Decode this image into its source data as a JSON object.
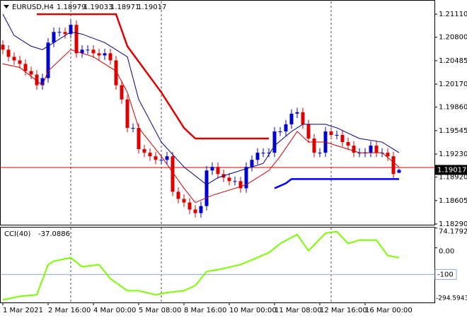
{
  "chart_data": [
    {
      "type": "candlestick",
      "title": "EURUSD,H4",
      "bull_color": "#0000cd",
      "bear_color": "#dd0000",
      "ylim": [
        1.1828,
        1.21282
      ],
      "yticks": [
        {
          "value": 1.2111,
          "label": "1.21110"
        },
        {
          "value": 1.208,
          "label": "1.20800"
        },
        {
          "value": 1.20485,
          "label": "1.20485"
        },
        {
          "value": 1.2017,
          "label": "1.20170"
        },
        {
          "value": 1.1986,
          "label": "1.19860"
        },
        {
          "value": 1.19545,
          "label": "1.19545"
        },
        {
          "value": 1.1923,
          "label": "1.19230"
        },
        {
          "value": 1.1892,
          "label": "1.18920"
        },
        {
          "value": 1.18605,
          "label": "1.18605"
        },
        {
          "value": 1.1829,
          "label": "1.18290"
        }
      ],
      "xticks": [
        {
          "value": 0,
          "label": "1 Mar 2021"
        },
        {
          "value": 8,
          "label": "2 Mar 16:00"
        },
        {
          "value": 16,
          "label": "4 Mar 00:00"
        },
        {
          "value": 24,
          "label": "5 Mar 08:00"
        },
        {
          "value": 32,
          "label": "8 Mar 16:00"
        },
        {
          "value": 40,
          "label": "10 Mar 00:00"
        },
        {
          "value": 48,
          "label": "11 Mar 08:00"
        },
        {
          "value": 56,
          "label": "12 Mar 16:00"
        },
        {
          "value": 64,
          "label": "16 Mar 00:00"
        }
      ],
      "day_separators": [
        12,
        28,
        58
      ],
      "red_line": 1.1905,
      "red_line_color": "#dd0000",
      "candles": [
        [
          1.207,
          1.2076,
          1.20573,
          1.20633
        ],
        [
          1.20633,
          1.20693,
          1.20477,
          1.20537
        ],
        [
          1.20537,
          1.20597,
          1.20429,
          1.20489
        ],
        [
          1.20489,
          1.20549,
          1.20382,
          1.20442
        ],
        [
          1.20442,
          1.20502,
          1.20286,
          1.20346
        ],
        [
          1.20346,
          1.20406,
          1.20238,
          1.20298
        ],
        [
          1.20298,
          1.20358,
          1.20095,
          1.20155
        ],
        [
          1.20155,
          1.20311,
          1.20095,
          1.20251
        ],
        [
          1.20251,
          1.20788,
          1.20191,
          1.20728
        ],
        [
          1.20728,
          1.20931,
          1.20668,
          1.20871
        ],
        [
          1.20871,
          1.20931,
          1.20811,
          1.20871
        ],
        [
          1.20871,
          1.20931,
          1.20783,
          1.20843
        ],
        [
          1.20843,
          1.21027,
          1.20783,
          1.20967
        ],
        [
          1.20967,
          1.21027,
          1.20525,
          1.20585
        ],
        [
          1.20585,
          1.20693,
          1.20525,
          1.20633
        ],
        [
          1.20633,
          1.20693,
          1.20573,
          1.20633
        ],
        [
          1.20633,
          1.20693,
          1.20525,
          1.20585
        ],
        [
          1.20585,
          1.20645,
          1.20496,
          1.20556
        ],
        [
          1.20556,
          1.20645,
          1.20496,
          1.20585
        ],
        [
          1.20585,
          1.20645,
          1.20429,
          1.20489
        ],
        [
          1.20489,
          1.20549,
          1.20095,
          1.20155
        ],
        [
          1.20155,
          1.20215,
          1.19904,
          1.19964
        ],
        [
          1.19964,
          1.20024,
          1.19522,
          1.19582
        ],
        [
          1.19582,
          1.19642,
          1.19522,
          1.19582
        ],
        [
          1.19582,
          1.19642,
          1.19236,
          1.19296
        ],
        [
          1.19296,
          1.19356,
          1.19188,
          1.19248
        ],
        [
          1.19248,
          1.19308,
          1.1914,
          1.192
        ],
        [
          1.192,
          1.1926,
          1.19092,
          1.19152
        ],
        [
          1.19152,
          1.19212,
          1.19092,
          1.19152
        ],
        [
          1.19152,
          1.1926,
          1.19092,
          1.192
        ],
        [
          1.192,
          1.1926,
          1.18663,
          1.18723
        ],
        [
          1.18723,
          1.18783,
          1.18567,
          1.18627
        ],
        [
          1.18627,
          1.18687,
          1.18519,
          1.18579
        ],
        [
          1.18579,
          1.18639,
          1.18424,
          1.18484
        ],
        [
          1.18484,
          1.18544,
          1.18376,
          1.18436
        ],
        [
          1.18436,
          1.18591,
          1.18376,
          1.18531
        ],
        [
          1.18531,
          1.19069,
          1.18471,
          1.19009
        ],
        [
          1.19009,
          1.19117,
          1.18949,
          1.19057
        ],
        [
          1.19057,
          1.19117,
          1.18901,
          1.18961
        ],
        [
          1.18961,
          1.19021,
          1.18853,
          1.18913
        ],
        [
          1.18913,
          1.18973,
          1.18806,
          1.18866
        ],
        [
          1.18866,
          1.18926,
          1.18806,
          1.18866
        ],
        [
          1.18866,
          1.18926,
          1.1871,
          1.1877
        ],
        [
          1.1877,
          1.19117,
          1.1871,
          1.19057
        ],
        [
          1.19057,
          1.19212,
          1.18997,
          1.19152
        ],
        [
          1.19152,
          1.19308,
          1.19092,
          1.19248
        ],
        [
          1.19248,
          1.19308,
          1.19188,
          1.19248
        ],
        [
          1.19248,
          1.19308,
          1.19188,
          1.19248
        ],
        [
          1.19248,
          1.19594,
          1.19188,
          1.19534
        ],
        [
          1.19534,
          1.19594,
          1.19474,
          1.19534
        ],
        [
          1.19534,
          1.1969,
          1.19474,
          1.1963
        ],
        [
          1.1963,
          1.19833,
          1.1957,
          1.19773
        ],
        [
          1.19773,
          1.19852,
          1.19713,
          1.19792
        ],
        [
          1.19792,
          1.19852,
          1.1957,
          1.1963
        ],
        [
          1.1963,
          1.1969,
          1.19379,
          1.19439
        ],
        [
          1.19439,
          1.19499,
          1.19188,
          1.19248
        ],
        [
          1.19248,
          1.19308,
          1.19188,
          1.19248
        ],
        [
          1.19248,
          1.19594,
          1.19188,
          1.19534
        ],
        [
          1.19534,
          1.19594,
          1.19427,
          1.19487
        ],
        [
          1.19487,
          1.19547,
          1.19427,
          1.19487
        ],
        [
          1.19487,
          1.19547,
          1.19331,
          1.19391
        ],
        [
          1.19391,
          1.19451,
          1.19283,
          1.19343
        ],
        [
          1.19343,
          1.19403,
          1.19188,
          1.19248
        ],
        [
          1.19248,
          1.19308,
          1.19188,
          1.19248
        ],
        [
          1.19248,
          1.19308,
          1.19188,
          1.19248
        ],
        [
          1.19248,
          1.19403,
          1.19188,
          1.19343
        ],
        [
          1.19343,
          1.19403,
          1.19188,
          1.19248
        ],
        [
          1.19248,
          1.19308,
          1.19188,
          1.19248
        ],
        [
          1.19248,
          1.19308,
          1.1914,
          1.192
        ],
        [
          1.192,
          1.1926,
          1.18901,
          1.18961
        ],
        [
          1.18979,
          1.19033,
          1.18971,
          1.19017
        ]
      ],
      "series": [
        {
          "color": "#000080",
          "width": 1,
          "x": [
            0,
            2,
            5,
            7,
            12,
            14,
            18,
            22,
            24,
            28,
            32,
            36,
            38,
            42,
            46,
            48,
            51,
            53,
            57,
            59,
            63,
            67,
            70
          ],
          "values": [
            1.2111,
            1.20824,
            1.2068,
            1.20633,
            1.20871,
            1.20843,
            1.20728,
            1.20537,
            1.19964,
            1.19391,
            1.19057,
            1.18818,
            1.18913,
            1.19009,
            1.19104,
            1.19343,
            1.19534,
            1.1963,
            1.1963,
            1.19582,
            1.19439,
            1.19391,
            1.19248
          ]
        },
        {
          "color": "#cc0000",
          "width": 1,
          "x": [
            0,
            3,
            7,
            8,
            12,
            16,
            20,
            22,
            24,
            28,
            32,
            34,
            37,
            41,
            43,
            47,
            49,
            52,
            54,
            57,
            59,
            63,
            67,
            70
          ],
          "values": [
            1.20442,
            1.20394,
            1.20155,
            1.20346,
            1.20633,
            1.20537,
            1.20346,
            1.20059,
            1.19582,
            1.192,
            1.1877,
            1.18579,
            1.18675,
            1.1877,
            1.18818,
            1.19009,
            1.192,
            1.19534,
            1.19391,
            1.19391,
            1.19343,
            1.19248,
            1.19248,
            1.19057
          ]
        },
        {
          "color": "#dd0000",
          "width": 2.5,
          "x": [
            6,
            20,
            22,
            28,
            32,
            34,
            47
          ],
          "values": [
            1.2111,
            1.2111,
            1.2068,
            1.20059,
            1.19582,
            1.19439,
            1.19439
          ]
        },
        {
          "color": "#0000ff",
          "width": 2.5,
          "x": [
            48,
            50,
            51,
            70
          ],
          "values": [
            1.1877,
            1.18837,
            1.18894,
            1.18894
          ]
        }
      ]
    },
    {
      "type": "line",
      "title": "CCI(40)",
      "ylim": [
        -205,
        76
      ],
      "yticks": [
        {
          "value": 74.1792,
          "label": "74.1792"
        },
        {
          "value": 0,
          "label": "0.00"
        }
      ],
      "min_label": "-294.5943",
      "level": {
        "value": -100,
        "label": "-100"
      },
      "level_color": "#87a9d8",
      "series": [
        {
          "color": "#7cfc00",
          "x": [
            0,
            3,
            6,
            8,
            9,
            12,
            14,
            17,
            19,
            22,
            24,
            27,
            29,
            32,
            34,
            36,
            38,
            42,
            44,
            47,
            49,
            52,
            54,
            57,
            59,
            61,
            63,
            66,
            68,
            70
          ],
          "values": [
            -195,
            -182,
            -176,
            -63,
            -50,
            -37,
            -71,
            -63,
            -116,
            -161,
            -161,
            -176,
            -168,
            -161,
            -142,
            -89,
            -82,
            -63,
            -45,
            -18,
            16,
            50,
            -11,
            55,
            61,
            16,
            29,
            29,
            -29,
            -37.0886
          ]
        }
      ]
    }
  ]
}
